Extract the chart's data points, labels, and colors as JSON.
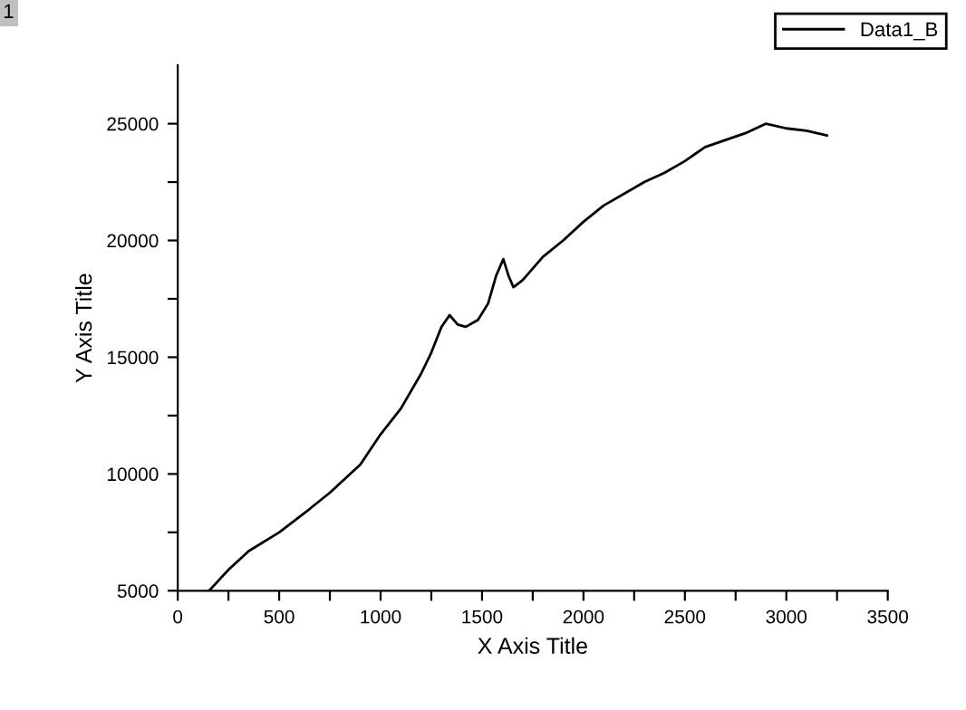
{
  "chart_data": {
    "type": "line",
    "xlabel": "X Axis Title",
    "ylabel": "Y Axis Title",
    "annotations": [
      "1"
    ],
    "series": [
      {
        "name": "Data1_B",
        "color": "#000000",
        "x": [
          155,
          250,
          350,
          500,
          650,
          750,
          900,
          1000,
          1100,
          1200,
          1250,
          1300,
          1340,
          1380,
          1420,
          1480,
          1530,
          1570,
          1605,
          1630,
          1655,
          1700,
          1800,
          1900,
          2000,
          2100,
          2200,
          2300,
          2400,
          2500,
          2600,
          2700,
          2800,
          2900,
          3000,
          3100,
          3200
        ],
        "values": [
          5000,
          5900,
          6700,
          7500,
          8500,
          9200,
          10400,
          11700,
          12800,
          14300,
          15200,
          16300,
          16800,
          16400,
          16300,
          16600,
          17300,
          18500,
          19200,
          18500,
          18000,
          18300,
          19300,
          20000,
          20800,
          21500,
          22000,
          22500,
          22900,
          23400,
          24000,
          24300,
          24600,
          25000,
          24800,
          24700,
          24500
        ]
      }
    ],
    "xlim": [
      0,
      3500
    ],
    "xticks": [
      0,
      {
        "value": 250,
        "label": null
      },
      500,
      {
        "value": 750,
        "label": null
      },
      1000,
      {
        "value": 1250,
        "label": null
      },
      1500,
      {
        "value": 1750,
        "label": null
      },
      2000,
      {
        "value": 2250,
        "label": null
      },
      2500,
      {
        "value": 2750,
        "label": null
      },
      3000,
      {
        "value": 3250,
        "label": null
      },
      3500
    ],
    "ylim": [
      5000,
      27500
    ],
    "yticks": [
      5000,
      {
        "value": 7500,
        "label": null
      },
      10000,
      {
        "value": 12500,
        "label": null
      },
      15000,
      {
        "value": 17500,
        "label": null
      },
      20000,
      {
        "value": 22500,
        "label": null
      },
      25000
    ],
    "grid": false,
    "legend": "top right",
    "line_style": "solid",
    "marker": "none"
  }
}
